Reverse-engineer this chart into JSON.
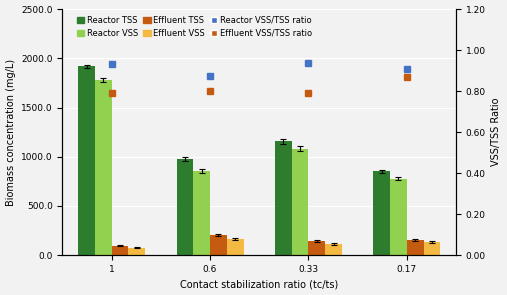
{
  "categories": [
    "1",
    "0.6",
    "0.33",
    "0.17"
  ],
  "reactor_tss": [
    1920,
    975,
    1155,
    850
  ],
  "reactor_vss": [
    1780,
    855,
    1080,
    775
  ],
  "effluent_tss": [
    95,
    205,
    145,
    155
  ],
  "effluent_vss": [
    75,
    165,
    115,
    135
  ],
  "reactor_vss_tss_ratio": [
    0.93,
    0.875,
    0.935,
    0.91
  ],
  "effluent_vss_tss_ratio": [
    0.79,
    0.8,
    0.79,
    0.87
  ],
  "reactor_tss_err": [
    15,
    18,
    22,
    18
  ],
  "reactor_vss_err": [
    20,
    18,
    25,
    15
  ],
  "effluent_tss_err": [
    4,
    12,
    8,
    8
  ],
  "effluent_vss_err": [
    4,
    10,
    7,
    7
  ],
  "reactor_ratio_err": [
    0.005,
    0.005,
    0.005,
    0.005
  ],
  "effluent_ratio_err": [
    0.005,
    0.005,
    0.005,
    0.005
  ],
  "color_reactor_tss": "#2e7d2e",
  "color_reactor_vss": "#92d050",
  "color_effluent_tss": "#c55a11",
  "color_effluent_vss": "#f4b942",
  "color_reactor_ratio": "#4472c4",
  "color_effluent_ratio": "#c55a11",
  "ylabel_left": "Biomass concentration (mg/L)",
  "ylabel_right": "VSS/TSS Ratio",
  "xlabel": "Contact stabilization ratio (tc/ts)",
  "ylim_left": [
    0,
    2500
  ],
  "ylim_right": [
    0.0,
    1.2
  ],
  "yticks_left": [
    0,
    500,
    1000,
    1500,
    2000,
    2500
  ],
  "ytick_labels_left": [
    "0.0",
    "500.0",
    "1000.0",
    "1500.0",
    "2000.0",
    "2500.0"
  ],
  "yticks_right": [
    0.0,
    0.2,
    0.4,
    0.6,
    0.8,
    1.0,
    1.2
  ],
  "ytick_labels_right": [
    "0.00",
    "0.20",
    "0.40",
    "0.60",
    "0.80",
    "1.00",
    "1.20"
  ],
  "bar_width": 0.17,
  "legend_fontsize": 6.0,
  "axis_fontsize": 7.0,
  "tick_fontsize": 6.5,
  "bg_color": "#f2f2f2"
}
